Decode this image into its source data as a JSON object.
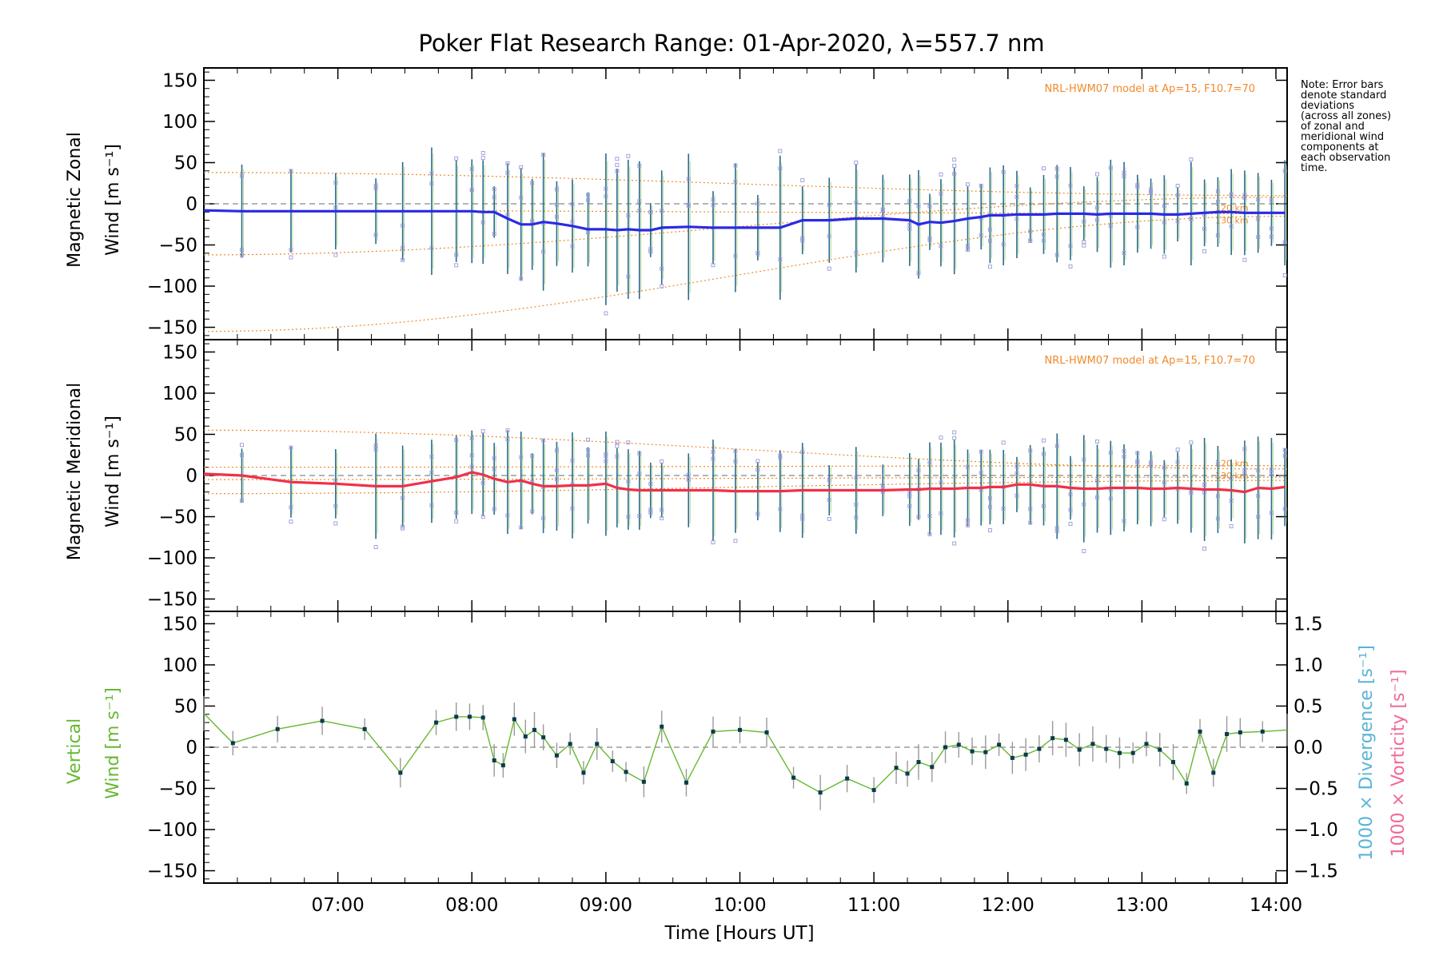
{
  "title": "Poker Flat Research Range: 01-Apr-2020, λ=557.7 nm",
  "note": [
    "Note: Error bars",
    "denote standard",
    "deviations",
    "(across all zones)",
    "of zonal and",
    "meridional wind",
    "components at",
    "each observation",
    "time."
  ],
  "colors": {
    "zonal": "#2a2ae6",
    "meridional": "#f0304a",
    "vertical": "#66b832",
    "model": "#f08a2a",
    "divergence": "#5ab4d6",
    "vorticity": "#f06a96",
    "scatter": "#9a9ad8",
    "errorbar": "#2a6a8a"
  },
  "chart_data": [
    {
      "type": "line",
      "panel": "zonal",
      "ylabel": [
        "Magnetic Zonal",
        "Wind [m s⁻¹]"
      ],
      "ylim": [
        -165,
        165
      ],
      "yticks": [
        150,
        100,
        50,
        0,
        -50,
        -100,
        -150
      ],
      "model_label": "NRL-HWM07 model at Ap=15, F10.7=70",
      "model_alt_labels": [
        "120 km",
        "130 km"
      ],
      "series": [
        {
          "x": [
            "06:00",
            "06:17",
            "06:39",
            "06:59",
            "07:17",
            "07:29",
            "07:42",
            "07:53",
            "08:00",
            "08:05",
            "08:10",
            "08:16",
            "08:22",
            "08:27",
            "08:32",
            "08:38",
            "08:45",
            "08:52",
            "09:00",
            "09:05",
            "09:10",
            "09:15",
            "09:20",
            "09:25",
            "09:37",
            "09:48",
            "09:58",
            "10:08",
            "10:18",
            "10:28",
            "10:40",
            "10:52",
            "11:04",
            "11:16",
            "11:20",
            "11:25",
            "11:30",
            "11:36",
            "11:42",
            "11:48",
            "11:52",
            "11:58",
            "12:04",
            "12:10",
            "12:16",
            "12:22",
            "12:28",
            "12:34",
            "12:40",
            "12:46",
            "12:52",
            "12:58",
            "13:04",
            "13:10",
            "13:16",
            "13:22",
            "13:28",
            "13:34",
            "13:40",
            "13:46",
            "13:52",
            "13:58",
            "14:04"
          ],
          "values": [
            -8,
            -9,
            -9,
            -9,
            -9,
            -9,
            -9,
            -9,
            -9,
            -10,
            -10,
            -18,
            -25,
            -25,
            -22,
            -24,
            -27,
            -31,
            -31,
            -32,
            -31,
            -32,
            -32,
            -29,
            -28,
            -29,
            -29,
            -29,
            -29,
            -20,
            -20,
            -18,
            -18,
            -20,
            -25,
            -22,
            -23,
            -21,
            -18,
            -16,
            -14,
            -14,
            -13,
            -13,
            -13,
            -12,
            -12,
            -12,
            -13,
            -12,
            -12,
            -12,
            -12,
            -13,
            -13,
            -12,
            -11,
            -10,
            -10,
            -11,
            -11,
            -11,
            -11
          ]
        }
      ]
    },
    {
      "type": "line",
      "panel": "meridional",
      "ylabel": [
        "Magnetic Meridional",
        "Wind [m s⁻¹]"
      ],
      "ylim": [
        -165,
        165
      ],
      "yticks": [
        150,
        100,
        50,
        0,
        -50,
        -100,
        -150
      ],
      "model_label": "NRL-HWM07 model at Ap=15, F10.7=70",
      "model_alt_labels": [
        "120 km",
        "130 km"
      ],
      "series": [
        {
          "x": [
            "06:00",
            "06:17",
            "06:39",
            "06:59",
            "07:17",
            "07:29",
            "07:42",
            "07:53",
            "08:00",
            "08:05",
            "08:10",
            "08:16",
            "08:22",
            "08:27",
            "08:32",
            "08:38",
            "08:45",
            "08:52",
            "09:00",
            "09:05",
            "09:10",
            "09:15",
            "09:20",
            "09:25",
            "09:37",
            "09:48",
            "09:58",
            "10:08",
            "10:18",
            "10:28",
            "10:40",
            "10:52",
            "11:04",
            "11:16",
            "11:20",
            "11:25",
            "11:30",
            "11:36",
            "11:42",
            "11:48",
            "11:52",
            "11:58",
            "12:04",
            "12:10",
            "12:16",
            "12:22",
            "12:28",
            "12:34",
            "12:40",
            "12:46",
            "12:52",
            "12:58",
            "13:04",
            "13:10",
            "13:16",
            "13:22",
            "13:28",
            "13:34",
            "13:40",
            "13:46",
            "13:52",
            "13:58",
            "14:04"
          ],
          "values": [
            2,
            0,
            -8,
            -10,
            -13,
            -13,
            -7,
            -2,
            4,
            1,
            -4,
            -8,
            -6,
            -10,
            -13,
            -13,
            -12,
            -12,
            -10,
            -15,
            -17,
            -18,
            -18,
            -18,
            -18,
            -18,
            -19,
            -19,
            -19,
            -18,
            -18,
            -18,
            -18,
            -17,
            -17,
            -16,
            -16,
            -16,
            -15,
            -15,
            -14,
            -14,
            -11,
            -11,
            -13,
            -13,
            -15,
            -16,
            -16,
            -15,
            -15,
            -15,
            -16,
            -16,
            -15,
            -16,
            -17,
            -17,
            -18,
            -20,
            -15,
            -16,
            -14
          ]
        }
      ]
    },
    {
      "type": "line",
      "panel": "vertical",
      "ylabel": [
        "Vertical",
        "Wind [m s⁻¹]"
      ],
      "ylim": [
        -165,
        165
      ],
      "yticks": [
        150,
        100,
        50,
        0,
        -50,
        -100,
        -150
      ],
      "right_axis": {
        "ylim": [
          -1.65,
          1.65
        ],
        "ticks": [
          1.5,
          1.0,
          0.5,
          0.0,
          -0.5,
          -1.0,
          -1.5
        ],
        "labels": [
          "1000 × Divergence [s⁻¹]",
          "1000 × Vorticity [s⁻¹]"
        ]
      },
      "xlabel": "Time [Hours UT]",
      "xticks": [
        "07:00",
        "08:00",
        "09:00",
        "10:00",
        "11:00",
        "12:00",
        "13:00",
        "14:00"
      ],
      "xlim": [
        "06:00",
        "14:05"
      ],
      "series": [
        {
          "x": [
            "06:00",
            "06:13",
            "06:33",
            "06:53",
            "07:12",
            "07:28",
            "07:44",
            "07:53",
            "07:59",
            "08:05",
            "08:10",
            "08:14",
            "08:19",
            "08:24",
            "08:28",
            "08:32",
            "08:38",
            "08:44",
            "08:50",
            "08:56",
            "09:03",
            "09:09",
            "09:17",
            "09:25",
            "09:36",
            "09:48",
            "10:00",
            "10:12",
            "10:24",
            "10:36",
            "10:48",
            "11:00",
            "11:10",
            "11:15",
            "11:20",
            "11:26",
            "11:32",
            "11:38",
            "11:44",
            "11:50",
            "11:56",
            "12:02",
            "12:08",
            "12:14",
            "12:20",
            "12:26",
            "12:32",
            "12:38",
            "12:44",
            "12:50",
            "12:56",
            "13:02",
            "13:08",
            "13:14",
            "13:20",
            "13:26",
            "13:32",
            "13:38",
            "13:44",
            "13:54",
            "14:05"
          ],
          "values": [
            41,
            5,
            22,
            32,
            22,
            -31,
            30,
            37,
            37,
            36,
            -16,
            -22,
            34,
            13,
            21,
            12,
            -10,
            4,
            -31,
            4,
            -17,
            -30,
            -42,
            25,
            -43,
            19,
            21,
            18,
            -37,
            -55,
            -38,
            -52,
            -25,
            -32,
            -18,
            -24,
            0,
            3,
            -5,
            -6,
            3,
            -13,
            -9,
            -2,
            11,
            9,
            -3,
            4,
            -2,
            -7,
            -7,
            4,
            -3,
            -18,
            -44,
            19,
            -31,
            16,
            18,
            19,
            21
          ]
        }
      ]
    }
  ]
}
